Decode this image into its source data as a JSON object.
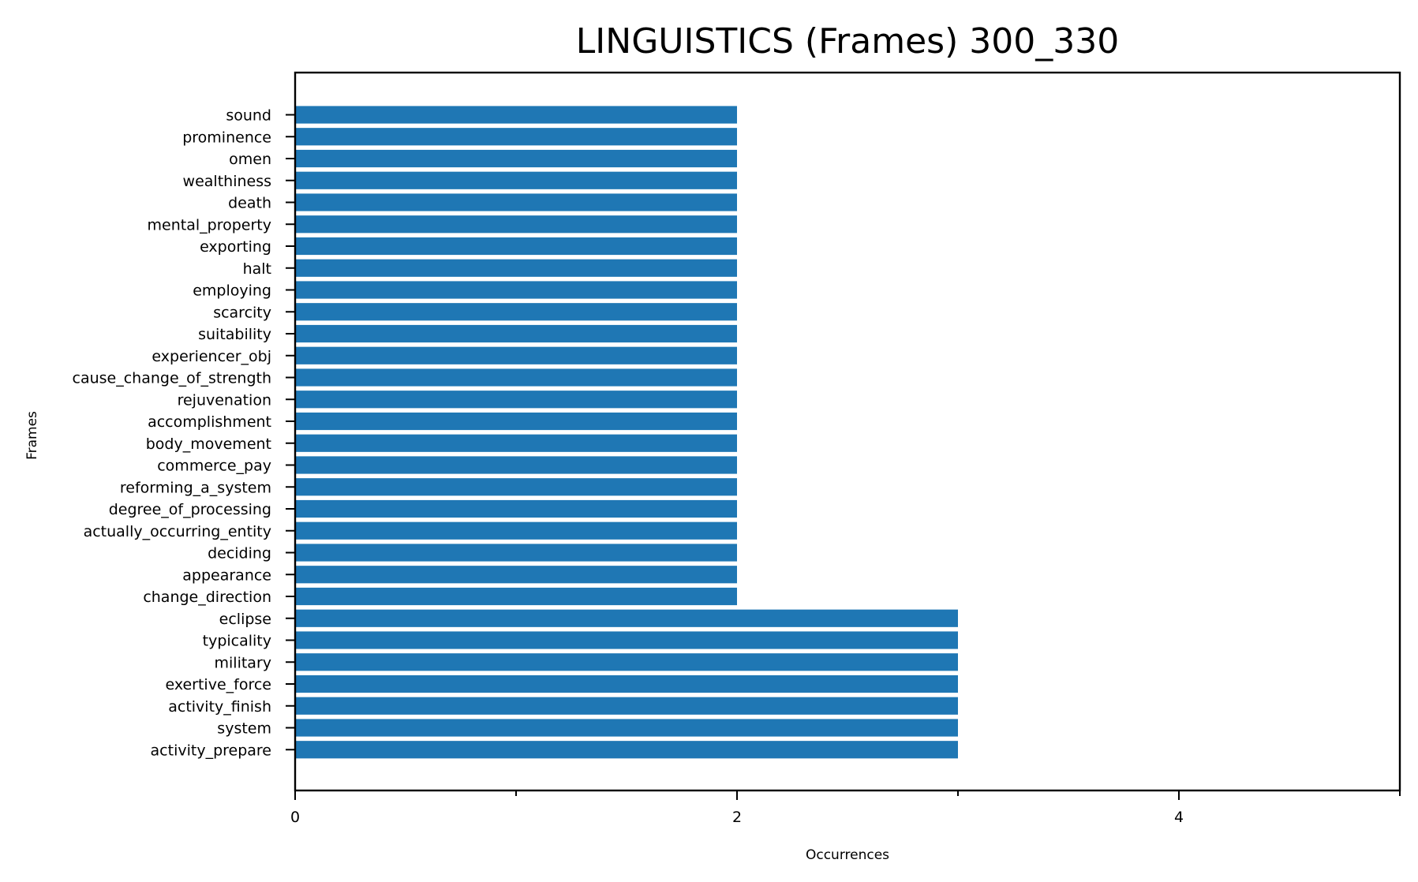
{
  "chart_data": {
    "type": "bar",
    "orientation": "horizontal",
    "title": "LINGUISTICS (Frames) 300_330",
    "xlabel": "Occurrences",
    "ylabel": "Frames",
    "xlim": [
      0,
      5
    ],
    "x_major_ticks": [
      0,
      2,
      4
    ],
    "x_minor_ticks": [
      1,
      3,
      5
    ],
    "grid": false,
    "bar_color": "#1f77b4",
    "categories": [
      "sound",
      "prominence",
      "omen",
      "wealthiness",
      "death",
      "mental_property",
      "exporting",
      "halt",
      "employing",
      "scarcity",
      "suitability",
      "experiencer_obj",
      "cause_change_of_strength",
      "rejuvenation",
      "accomplishment",
      "body_movement",
      "commerce_pay",
      "reforming_a_system",
      "degree_of_processing",
      "actually_occurring_entity",
      "deciding",
      "appearance",
      "change_direction",
      "eclipse",
      "typicality",
      "military",
      "exertive_force",
      "activity_finish",
      "system",
      "activity_prepare"
    ],
    "values": [
      2,
      2,
      2,
      2,
      2,
      2,
      2,
      2,
      2,
      2,
      2,
      2,
      2,
      2,
      2,
      2,
      2,
      2,
      2,
      2,
      2,
      2,
      2,
      3,
      3,
      3,
      3,
      3,
      3,
      3
    ]
  }
}
